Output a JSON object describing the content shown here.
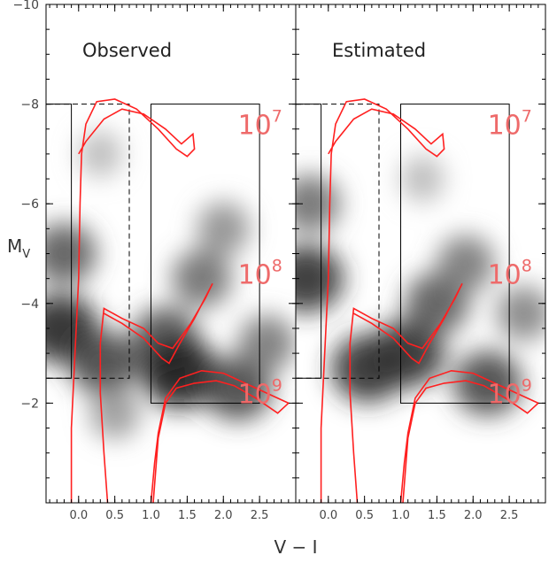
{
  "chart_data": [
    {
      "type": "heatmap",
      "panel_label": "Observed",
      "xlabel": "V − I",
      "ylabel": "M_V",
      "xlim": [
        -0.45,
        3.0
      ],
      "ylim": [
        0,
        -10
      ],
      "x_ticks": [
        "0.0",
        "0.5",
        "1.0",
        "1.5",
        "2.0",
        "2.5"
      ],
      "y_ticks": [
        "−10",
        "−8",
        "−6",
        "−4",
        "−2"
      ],
      "age_labels": [
        {
          "base": "10",
          "exp": "7",
          "x": 2.2,
          "y": -7.4
        },
        {
          "base": "10",
          "exp": "8",
          "x": 2.2,
          "y": -4.4
        },
        {
          "base": "10",
          "exp": "9",
          "x": 2.2,
          "y": -2.0
        }
      ],
      "boxes": [
        {
          "style": "solid",
          "x": [
            -0.45,
            -0.1
          ],
          "y": [
            -8.0,
            -2.5
          ]
        },
        {
          "style": "dashed",
          "x": [
            -0.45,
            0.7
          ],
          "y": [
            -8.0,
            -2.5
          ]
        },
        {
          "style": "solid",
          "x": [
            1.0,
            2.5
          ],
          "y": [
            -8.0,
            -2.0
          ]
        }
      ],
      "density_blobs": [
        {
          "x": -0.25,
          "y": -3.5,
          "level": 0.95
        },
        {
          "x": -0.2,
          "y": -5.0,
          "level": 0.7
        },
        {
          "x": 0.35,
          "y": -2.8,
          "level": 0.8
        },
        {
          "x": 1.2,
          "y": -3.3,
          "level": 0.75
        },
        {
          "x": 1.4,
          "y": -2.6,
          "level": 1.0
        },
        {
          "x": 1.7,
          "y": -4.5,
          "level": 0.6
        },
        {
          "x": 2.0,
          "y": -5.5,
          "level": 0.45
        },
        {
          "x": 2.2,
          "y": -2.3,
          "level": 0.8
        },
        {
          "x": 2.6,
          "y": -3.2,
          "level": 0.55
        },
        {
          "x": 0.3,
          "y": -7.0,
          "level": 0.25
        },
        {
          "x": 0.5,
          "y": -1.8,
          "level": 0.4
        }
      ]
    },
    {
      "type": "heatmap",
      "panel_label": "Estimated",
      "xlabel": "V − I",
      "ylabel": "M_V",
      "xlim": [
        -0.45,
        3.0
      ],
      "ylim": [
        0,
        -10
      ],
      "x_ticks": [
        "0.0",
        "0.5",
        "1.0",
        "1.5",
        "2.0",
        "2.5"
      ],
      "y_ticks": [
        "−10",
        "−8",
        "−6",
        "−4",
        "−2"
      ],
      "age_labels": [
        {
          "base": "10",
          "exp": "7",
          "x": 2.2,
          "y": -7.4
        },
        {
          "base": "10",
          "exp": "8",
          "x": 2.2,
          "y": -4.4
        },
        {
          "base": "10",
          "exp": "9",
          "x": 2.2,
          "y": -2.0
        }
      ],
      "boxes": [
        {
          "style": "solid",
          "x": [
            -0.45,
            -0.1
          ],
          "y": [
            -8.0,
            -2.5
          ]
        },
        {
          "style": "dashed",
          "x": [
            -0.45,
            0.7
          ],
          "y": [
            -8.0,
            -2.5
          ]
        },
        {
          "style": "solid",
          "x": [
            1.0,
            2.5
          ],
          "y": [
            -8.0,
            -2.0
          ]
        }
      ],
      "density_blobs": [
        {
          "x": -0.3,
          "y": -4.5,
          "level": 0.9
        },
        {
          "x": -0.25,
          "y": -6.0,
          "level": 0.6
        },
        {
          "x": 0.55,
          "y": -2.7,
          "level": 0.9
        },
        {
          "x": 1.1,
          "y": -3.0,
          "level": 0.9
        },
        {
          "x": 1.5,
          "y": -4.0,
          "level": 0.7
        },
        {
          "x": 1.9,
          "y": -4.8,
          "level": 0.55
        },
        {
          "x": 2.2,
          "y": -2.4,
          "level": 0.8
        },
        {
          "x": 2.7,
          "y": -3.8,
          "level": 0.5
        },
        {
          "x": 1.3,
          "y": -6.5,
          "level": 0.25
        }
      ]
    }
  ],
  "isochrones": [
    {
      "name": "10^7",
      "color": "#ff2020",
      "points": [
        [
          -0.1,
          0
        ],
        [
          -0.1,
          -1.5
        ],
        [
          -0.05,
          -3.0
        ],
        [
          0.0,
          -4.5
        ],
        [
          0.02,
          -6.0
        ],
        [
          0.04,
          -7.0
        ],
        [
          0.1,
          -7.6
        ],
        [
          0.25,
          -8.05
        ],
        [
          0.5,
          -8.1
        ],
        [
          0.8,
          -7.9
        ],
        [
          1.1,
          -7.5
        ],
        [
          1.35,
          -7.1
        ],
        [
          1.5,
          -6.95
        ],
        [
          1.6,
          -7.1
        ],
        [
          1.58,
          -7.4
        ],
        [
          1.42,
          -7.2
        ],
        [
          1.2,
          -7.5
        ],
        [
          0.9,
          -7.8
        ],
        [
          0.6,
          -7.9
        ],
        [
          0.35,
          -7.7
        ],
        [
          0.1,
          -7.25
        ],
        [
          0.0,
          -7.0
        ]
      ]
    },
    {
      "name": "10^8",
      "color": "#ff2020",
      "points": [
        [
          0.4,
          0
        ],
        [
          0.35,
          -1.0
        ],
        [
          0.3,
          -2.2
        ],
        [
          0.3,
          -3.2
        ],
        [
          0.35,
          -3.9
        ],
        [
          0.6,
          -3.7
        ],
        [
          0.9,
          -3.5
        ],
        [
          1.1,
          -3.2
        ],
        [
          1.3,
          -3.1
        ],
        [
          1.55,
          -3.6
        ],
        [
          1.75,
          -4.1
        ],
        [
          1.85,
          -4.4
        ],
        [
          1.6,
          -3.7
        ],
        [
          1.4,
          -3.2
        ],
        [
          1.25,
          -2.8
        ],
        [
          1.15,
          -2.9
        ],
        [
          0.9,
          -3.3
        ],
        [
          0.6,
          -3.6
        ],
        [
          0.35,
          -3.8
        ]
      ]
    },
    {
      "name": "10^9",
      "color": "#ff2020",
      "points": [
        [
          1.0,
          0
        ],
        [
          1.05,
          -0.8
        ],
        [
          1.1,
          -1.4
        ],
        [
          1.2,
          -2.1
        ],
        [
          1.4,
          -2.5
        ],
        [
          1.7,
          -2.65
        ],
        [
          2.0,
          -2.6
        ],
        [
          2.3,
          -2.4
        ],
        [
          2.6,
          -2.2
        ],
        [
          2.9,
          -2.0
        ],
        [
          2.75,
          -1.8
        ],
        [
          2.45,
          -2.1
        ],
        [
          2.15,
          -2.35
        ],
        [
          1.9,
          -2.45
        ],
        [
          1.6,
          -2.4
        ],
        [
          1.35,
          -2.3
        ],
        [
          1.2,
          -2.0
        ],
        [
          1.1,
          -1.3
        ],
        [
          1.03,
          0
        ]
      ]
    }
  ]
}
